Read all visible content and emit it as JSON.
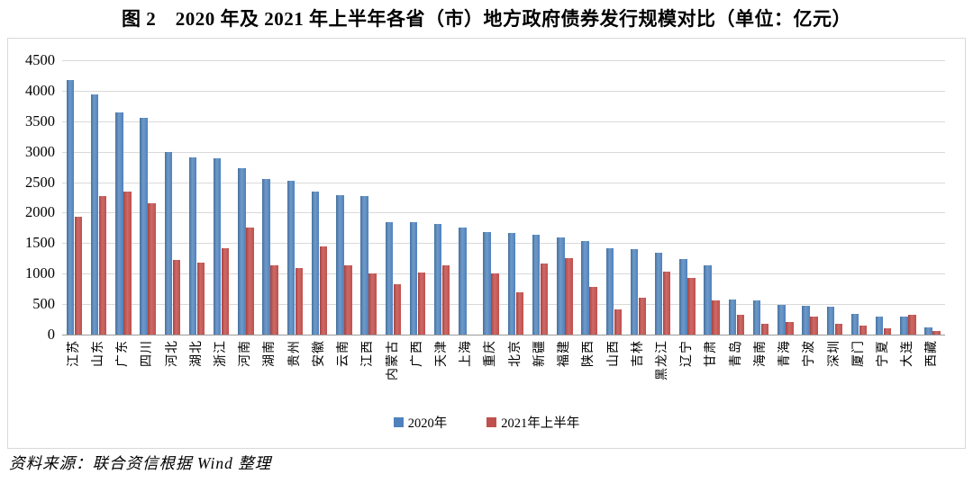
{
  "page": {
    "title": "图 2　2020 年及 2021 年上半年各省（市）地方政府债券发行规模对比（单位：亿元）",
    "source_note": "资料来源：联合资信根据 Wind 整理"
  },
  "chart_data": {
    "type": "bar",
    "title": "2020 年及 2021 年上半年各省（市）地方政府债券发行规模对比",
    "unit": "亿元",
    "categories": [
      "江苏",
      "山东",
      "广东",
      "四川",
      "河北",
      "湖北",
      "浙江",
      "河南",
      "湖南",
      "贵州",
      "安徽",
      "云南",
      "江西",
      "内蒙古",
      "广西",
      "天津",
      "上海",
      "重庆",
      "北京",
      "新疆",
      "福建",
      "陕西",
      "山西",
      "吉林",
      "黑龙江",
      "辽宁",
      "甘肃",
      "青岛",
      "海南",
      "青海",
      "宁波",
      "深圳",
      "厦门",
      "宁夏",
      "大连",
      "西藏"
    ],
    "series": [
      {
        "name": "2020年",
        "color": "#4f81bd",
        "values": [
          4180,
          3940,
          3650,
          3550,
          3000,
          2910,
          2890,
          2730,
          2550,
          2530,
          2340,
          2290,
          2280,
          1850,
          1840,
          1810,
          1760,
          1690,
          1670,
          1640,
          1600,
          1530,
          1420,
          1400,
          1350,
          1240,
          1130,
          570,
          565,
          490,
          470,
          455,
          345,
          300,
          290,
          125
        ]
      },
      {
        "name": "2021年上半年",
        "color": "#c0504d",
        "values": [
          1930,
          2280,
          2340,
          2160,
          1220,
          1180,
          1410,
          1760,
          1130,
          1090,
          1440,
          1140,
          1010,
          820,
          1020,
          1130,
          0,
          1010,
          700,
          1160,
          1250,
          780,
          420,
          610,
          1040,
          930,
          560,
          330,
          175,
          210,
          300,
          185,
          150,
          100,
          330,
          55
        ]
      }
    ],
    "xlabel": "",
    "ylabel": "",
    "ylim": [
      0,
      4500
    ],
    "ytick_step": 500,
    "grid": true,
    "legend_position": "bottom",
    "gridline_color": "#d9d9d9",
    "axis_color": "#9b9b9b"
  }
}
